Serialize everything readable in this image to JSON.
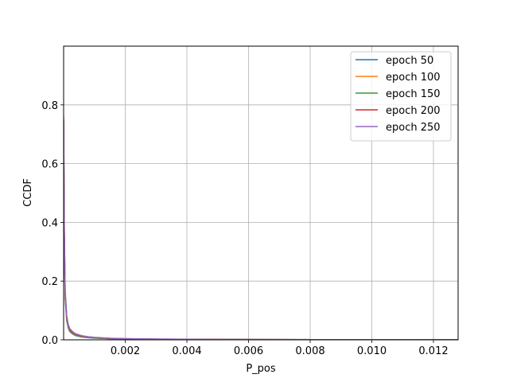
{
  "chart_data": {
    "type": "line",
    "title": "",
    "xlabel": "P_pos",
    "ylabel": "CCDF",
    "xlim": [
      0,
      0.0128
    ],
    "ylim": [
      0,
      1.0
    ],
    "xticks": [
      0.002,
      0.004,
      0.006,
      0.008,
      0.01,
      0.012
    ],
    "xtick_labels": [
      "0.002",
      "0.004",
      "0.006",
      "0.008",
      "0.010",
      "0.012"
    ],
    "yticks": [
      0.0,
      0.2,
      0.4,
      0.6,
      0.8
    ],
    "ytick_labels": [
      "0.0",
      "0.2",
      "0.4",
      "0.6",
      "0.8"
    ],
    "grid": true,
    "legend_position": "top-right",
    "series": [
      {
        "name": "epoch 50",
        "color": "#1f77b4",
        "x": [
          0,
          2e-05,
          5e-05,
          0.0001,
          0.00015,
          0.0002,
          0.0003,
          0.0004,
          0.0006,
          0.0008,
          0.001,
          0.0015,
          0.002,
          0.003,
          0.005,
          0.008,
          0.0128
        ],
        "y": [
          0.72,
          0.35,
          0.14,
          0.065,
          0.04,
          0.028,
          0.019,
          0.014,
          0.0095,
          0.0072,
          0.0058,
          0.0038,
          0.0028,
          0.0018,
          0.001,
          0.0006,
          0.0003
        ]
      },
      {
        "name": "epoch 100",
        "color": "#ff7f0e",
        "x": [
          0,
          2e-05,
          5e-05,
          0.0001,
          0.00015,
          0.0002,
          0.0003,
          0.0004,
          0.0006,
          0.0008,
          0.001,
          0.0015,
          0.002,
          0.003,
          0.005,
          0.008,
          0.0128
        ],
        "y": [
          0.73,
          0.36,
          0.15,
          0.07,
          0.043,
          0.031,
          0.021,
          0.016,
          0.011,
          0.0082,
          0.0066,
          0.0043,
          0.0031,
          0.002,
          0.0011,
          0.0007,
          0.0004
        ]
      },
      {
        "name": "epoch 150",
        "color": "#2ca02c",
        "x": [
          0,
          2e-05,
          5e-05,
          0.0001,
          0.00015,
          0.0002,
          0.0003,
          0.0004,
          0.0006,
          0.0008,
          0.001,
          0.0015,
          0.002,
          0.003,
          0.005,
          0.008,
          0.0128
        ],
        "y": [
          0.74,
          0.37,
          0.155,
          0.074,
          0.046,
          0.033,
          0.023,
          0.017,
          0.012,
          0.009,
          0.0072,
          0.0047,
          0.0034,
          0.0022,
          0.0012,
          0.0007,
          0.0004
        ]
      },
      {
        "name": "epoch 200",
        "color": "#d62728",
        "x": [
          0,
          2e-05,
          5e-05,
          0.0001,
          0.00015,
          0.0002,
          0.0003,
          0.0004,
          0.0006,
          0.0008,
          0.001,
          0.0015,
          0.002,
          0.003,
          0.005,
          0.008,
          0.0128
        ],
        "y": [
          0.75,
          0.38,
          0.16,
          0.078,
          0.049,
          0.035,
          0.025,
          0.019,
          0.013,
          0.0098,
          0.0078,
          0.0051,
          0.0037,
          0.0024,
          0.0013,
          0.0008,
          0.0004
        ]
      },
      {
        "name": "epoch 250",
        "color": "#9467bd",
        "x": [
          0,
          2e-05,
          5e-05,
          0.0001,
          0.00015,
          0.0002,
          0.0003,
          0.0004,
          0.0006,
          0.0008,
          0.001,
          0.0015,
          0.002,
          0.003,
          0.005,
          0.008,
          0.0128
        ],
        "y": [
          0.76,
          0.39,
          0.17,
          0.082,
          0.052,
          0.038,
          0.027,
          0.02,
          0.014,
          0.0105,
          0.0084,
          0.0055,
          0.004,
          0.0026,
          0.0014,
          0.0008,
          0.0004
        ]
      }
    ]
  }
}
